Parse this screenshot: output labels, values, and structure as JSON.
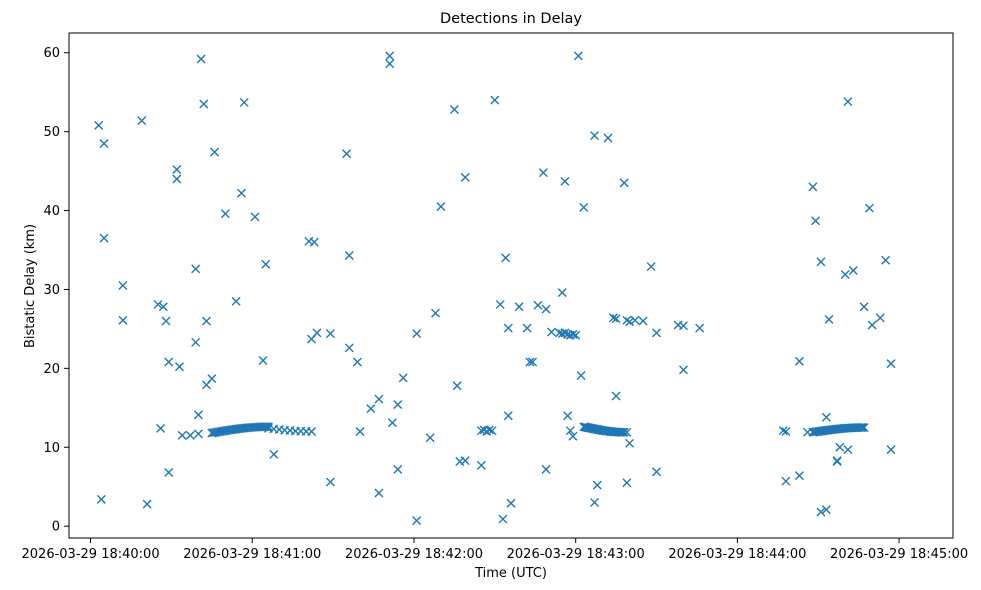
{
  "chart_data": {
    "type": "scatter",
    "title": "Detections in Delay",
    "xlabel": "Time (UTC)",
    "ylabel": "Bistatic Delay (km)",
    "marker": "x",
    "marker_color": "#1f77b4",
    "grid": false,
    "legend": "none",
    "xlim": [
      "2026-03-29 18:39:52",
      "2026-03-29 18:45:20"
    ],
    "ylim": [
      -1.5,
      62.5
    ],
    "x_ticks": [
      "2026-03-29 18:40:00",
      "2026-03-29 18:41:00",
      "2026-03-29 18:42:00",
      "2026-03-29 18:43:00",
      "2026-03-29 18:44:00",
      "2026-03-29 18:45:00"
    ],
    "y_ticks": [
      "0",
      "10",
      "20",
      "30",
      "40",
      "50",
      "60"
    ],
    "points": [
      [
        "2026-03-29 18:40:03",
        50.8
      ],
      [
        "2026-03-29 18:40:04",
        3.4
      ],
      [
        "2026-03-29 18:40:05",
        48.5
      ],
      [
        "2026-03-29 18:40:05",
        36.5
      ],
      [
        "2026-03-29 18:40:12",
        30.5
      ],
      [
        "2026-03-29 18:40:12",
        26.1
      ],
      [
        "2026-03-29 18:40:19",
        51.4
      ],
      [
        "2026-03-29 18:40:21",
        2.8
      ],
      [
        "2026-03-29 18:40:25",
        28.1
      ],
      [
        "2026-03-29 18:40:26",
        12.4
      ],
      [
        "2026-03-29 18:40:27",
        27.8
      ],
      [
        "2026-03-29 18:40:28",
        26.0
      ],
      [
        "2026-03-29 18:40:29",
        6.8
      ],
      [
        "2026-03-29 18:40:29",
        20.8
      ],
      [
        "2026-03-29 18:40:32",
        45.2
      ],
      [
        "2026-03-29 18:40:32",
        44.0
      ],
      [
        "2026-03-29 18:40:33",
        20.2
      ],
      [
        "2026-03-29 18:40:34",
        11.5
      ],
      [
        "2026-03-29 18:40:37",
        11.5
      ],
      [
        "2026-03-29 18:40:39",
        23.3
      ],
      [
        "2026-03-29 18:40:39",
        32.6
      ],
      [
        "2026-03-29 18:40:40",
        11.7
      ],
      [
        "2026-03-29 18:40:40",
        14.1
      ],
      [
        "2026-03-29 18:40:41",
        59.2
      ],
      [
        "2026-03-29 18:40:42",
        53.5
      ],
      [
        "2026-03-29 18:40:43",
        26.0
      ],
      [
        "2026-03-29 18:40:43",
        17.9
      ],
      [
        "2026-03-29 18:40:45",
        18.7
      ],
      [
        "2026-03-29 18:40:46",
        47.4
      ],
      [
        "2026-03-29 18:40:50",
        39.6
      ],
      [
        "2026-03-29 18:40:54",
        28.5
      ],
      [
        "2026-03-29 18:40:56",
        42.2
      ],
      [
        "2026-03-29 18:40:57",
        53.7
      ],
      [
        "2026-03-29 18:41:01",
        39.2
      ],
      [
        "2026-03-29 18:41:04",
        21.0
      ],
      [
        "2026-03-29 18:41:05",
        33.2
      ],
      [
        "2026-03-29 18:41:08",
        9.1
      ],
      [
        "2026-03-29 18:41:21",
        36.1
      ],
      [
        "2026-03-29 18:41:22",
        23.7
      ],
      [
        "2026-03-29 18:41:23",
        36.0
      ],
      [
        "2026-03-29 18:41:24",
        24.5
      ],
      [
        "2026-03-29 18:41:29",
        5.6
      ],
      [
        "2026-03-29 18:41:29",
        24.4
      ],
      [
        "2026-03-29 18:41:35",
        47.2
      ],
      [
        "2026-03-29 18:41:36",
        34.3
      ],
      [
        "2026-03-29 18:41:36",
        22.6
      ],
      [
        "2026-03-29 18:41:39",
        20.8
      ],
      [
        "2026-03-29 18:41:40",
        12.0
      ],
      [
        "2026-03-29 18:41:44",
        14.9
      ],
      [
        "2026-03-29 18:41:47",
        16.1
      ],
      [
        "2026-03-29 18:41:47",
        4.2
      ],
      [
        "2026-03-29 18:41:51",
        59.6
      ],
      [
        "2026-03-29 18:41:51",
        58.6
      ],
      [
        "2026-03-29 18:41:52",
        13.1
      ],
      [
        "2026-03-29 18:41:54",
        15.4
      ],
      [
        "2026-03-29 18:41:54",
        7.2
      ],
      [
        "2026-03-29 18:41:56",
        18.8
      ],
      [
        "2026-03-29 18:42:01",
        24.4
      ],
      [
        "2026-03-29 18:42:01",
        0.7
      ],
      [
        "2026-03-29 18:42:06",
        11.2
      ],
      [
        "2026-03-29 18:42:08",
        27.0
      ],
      [
        "2026-03-29 18:42:10",
        40.5
      ],
      [
        "2026-03-29 18:42:15",
        52.8
      ],
      [
        "2026-03-29 18:42:16",
        17.8
      ],
      [
        "2026-03-29 18:42:17",
        8.2
      ],
      [
        "2026-03-29 18:42:19",
        8.3
      ],
      [
        "2026-03-29 18:42:19",
        44.2
      ],
      [
        "2026-03-29 18:42:25",
        7.7
      ],
      [
        "2026-03-29 18:42:25",
        12.1
      ],
      [
        "2026-03-29 18:42:26",
        12.2
      ],
      [
        "2026-03-29 18:42:27",
        12.0
      ],
      [
        "2026-03-29 18:42:28",
        12.2
      ],
      [
        "2026-03-29 18:42:29",
        12.1
      ],
      [
        "2026-03-29 18:42:30",
        54.0
      ],
      [
        "2026-03-29 18:42:32",
        28.1
      ],
      [
        "2026-03-29 18:42:33",
        0.9
      ],
      [
        "2026-03-29 18:42:34",
        34.0
      ],
      [
        "2026-03-29 18:42:35",
        14.0
      ],
      [
        "2026-03-29 18:42:35",
        25.1
      ],
      [
        "2026-03-29 18:42:36",
        2.9
      ],
      [
        "2026-03-29 18:42:39",
        27.8
      ],
      [
        "2026-03-29 18:42:42",
        25.1
      ],
      [
        "2026-03-29 18:42:43",
        20.8
      ],
      [
        "2026-03-29 18:42:44",
        20.8
      ],
      [
        "2026-03-29 18:42:46",
        28.0
      ],
      [
        "2026-03-29 18:42:48",
        44.8
      ],
      [
        "2026-03-29 18:42:49",
        27.5
      ],
      [
        "2026-03-29 18:42:49",
        7.2
      ],
      [
        "2026-03-29 18:42:51",
        24.6
      ],
      [
        "2026-03-29 18:42:54",
        24.5
      ],
      [
        "2026-03-29 18:42:55",
        24.4
      ],
      [
        "2026-03-29 18:42:56",
        24.5
      ],
      [
        "2026-03-29 18:42:57",
        24.3
      ],
      [
        "2026-03-29 18:42:58",
        24.2
      ],
      [
        "2026-03-29 18:42:59",
        24.3
      ],
      [
        "2026-03-29 18:43:00",
        24.2
      ],
      [
        "2026-03-29 18:42:55",
        29.6
      ],
      [
        "2026-03-29 18:42:56",
        43.7
      ],
      [
        "2026-03-29 18:42:57",
        14.0
      ],
      [
        "2026-03-29 18:42:58",
        12.1
      ],
      [
        "2026-03-29 18:42:59",
        11.4
      ],
      [
        "2026-03-29 18:43:01",
        59.6
      ],
      [
        "2026-03-29 18:43:02",
        19.1
      ],
      [
        "2026-03-29 18:43:03",
        40.4
      ],
      [
        "2026-03-29 18:43:07",
        49.5
      ],
      [
        "2026-03-29 18:43:08",
        5.2
      ],
      [
        "2026-03-29 18:43:07",
        3.0
      ],
      [
        "2026-03-29 18:43:12",
        49.2
      ],
      [
        "2026-03-29 18:43:14",
        26.4
      ],
      [
        "2026-03-29 18:43:15",
        26.3
      ],
      [
        "2026-03-29 18:43:15",
        16.5
      ],
      [
        "2026-03-29 18:43:18",
        43.5
      ],
      [
        "2026-03-29 18:43:19",
        26.1
      ],
      [
        "2026-03-29 18:43:20",
        25.9
      ],
      [
        "2026-03-29 18:43:19",
        11.9
      ],
      [
        "2026-03-29 18:43:19",
        5.5
      ],
      [
        "2026-03-29 18:43:20",
        10.5
      ],
      [
        "2026-03-29 18:43:22",
        26.1
      ],
      [
        "2026-03-29 18:43:25",
        26.0
      ],
      [
        "2026-03-29 18:43:28",
        32.9
      ],
      [
        "2026-03-29 18:43:30",
        24.5
      ],
      [
        "2026-03-29 18:43:30",
        6.9
      ],
      [
        "2026-03-29 18:43:38",
        25.5
      ],
      [
        "2026-03-29 18:43:40",
        25.4
      ],
      [
        "2026-03-29 18:43:40",
        19.8
      ],
      [
        "2026-03-29 18:43:46",
        25.1
      ],
      [
        "2026-03-29 18:44:17",
        12.1
      ],
      [
        "2026-03-29 18:44:18",
        12.0
      ],
      [
        "2026-03-29 18:44:18",
        5.7
      ],
      [
        "2026-03-29 18:44:23",
        20.9
      ],
      [
        "2026-03-29 18:44:23",
        6.4
      ],
      [
        "2026-03-29 18:44:26",
        11.9
      ],
      [
        "2026-03-29 18:44:28",
        43.0
      ],
      [
        "2026-03-29 18:44:29",
        38.7
      ],
      [
        "2026-03-29 18:44:31",
        33.5
      ],
      [
        "2026-03-29 18:44:31",
        1.8
      ],
      [
        "2026-03-29 18:44:33",
        2.1
      ],
      [
        "2026-03-29 18:44:33",
        13.8
      ],
      [
        "2026-03-29 18:44:34",
        26.2
      ],
      [
        "2026-03-29 18:44:37",
        8.2
      ],
      [
        "2026-03-29 18:44:37",
        8.3
      ],
      [
        "2026-03-29 18:44:38",
        10.0
      ],
      [
        "2026-03-29 18:44:40",
        31.9
      ],
      [
        "2026-03-29 18:44:41",
        53.8
      ],
      [
        "2026-03-29 18:44:41",
        9.7
      ],
      [
        "2026-03-29 18:44:43",
        32.4
      ],
      [
        "2026-03-29 18:44:47",
        27.8
      ],
      [
        "2026-03-29 18:44:49",
        40.3
      ],
      [
        "2026-03-29 18:44:50",
        25.5
      ],
      [
        "2026-03-29 18:44:53",
        26.4
      ],
      [
        "2026-03-29 18:44:55",
        33.7
      ],
      [
        "2026-03-29 18:44:57",
        20.6
      ],
      [
        "2026-03-29 18:44:57",
        9.7
      ]
    ],
    "tracks": [
      {
        "start": "2026-03-29 18:40:45",
        "end": "2026-03-29 18:41:06",
        "y_start": 11.8,
        "y_end": 12.6,
        "count": 34
      },
      {
        "start": "2026-03-29 18:41:06",
        "end": "2026-03-29 18:41:22",
        "y_start": 12.4,
        "y_end": 12.0,
        "count": 9
      },
      {
        "start": "2026-03-29 18:43:03",
        "end": "2026-03-29 18:43:18",
        "y_start": 12.6,
        "y_end": 11.9,
        "count": 32
      },
      {
        "start": "2026-03-29 18:44:28",
        "end": "2026-03-29 18:44:47",
        "y_start": 11.9,
        "y_end": 12.5,
        "count": 34
      }
    ]
  }
}
